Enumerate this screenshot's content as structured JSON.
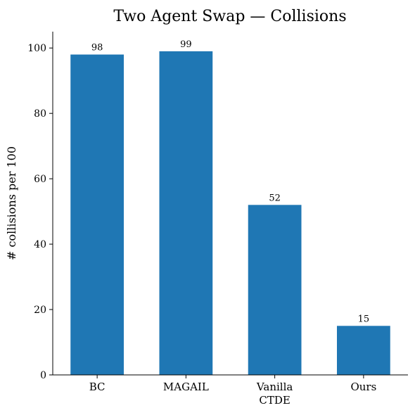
{
  "chart_data": {
    "type": "bar",
    "title": "Two Agent Swap — Collisions",
    "xlabel": "",
    "ylabel": "# collisions per 100",
    "categories": [
      {
        "label_lines": [
          "BC"
        ]
      },
      {
        "label_lines": [
          "MAGAIL"
        ]
      },
      {
        "label_lines": [
          "Vanilla",
          "CTDE"
        ]
      },
      {
        "label_lines": [
          "Ours"
        ]
      }
    ],
    "values": [
      98,
      99,
      52,
      15
    ],
    "data_labels": [
      "98",
      "99",
      "52",
      "15"
    ],
    "ylim": [
      0,
      105
    ],
    "yticks": [
      0,
      20,
      40,
      60,
      80,
      100
    ],
    "bar_color": "#1f77b4",
    "grid": false,
    "legend": "none"
  }
}
